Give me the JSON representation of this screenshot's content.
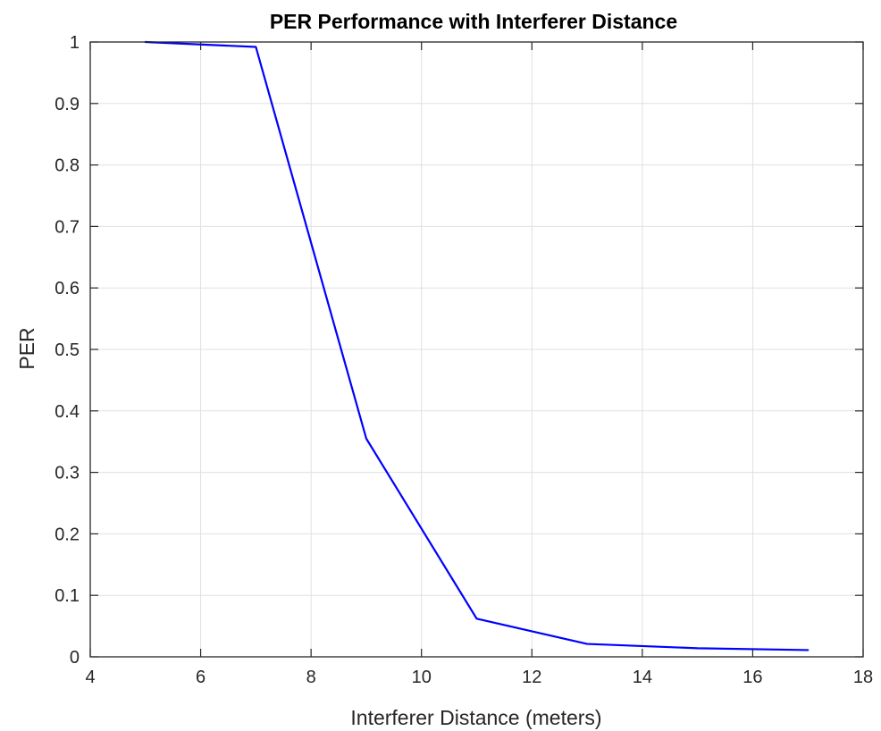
{
  "chart_data": {
    "type": "line",
    "title": "PER Performance with Interferer Distance",
    "xlabel": "Interferer Distance (meters)",
    "ylabel": "PER",
    "xlim": [
      4,
      18
    ],
    "ylim": [
      0,
      1
    ],
    "xticks": [
      4,
      6,
      8,
      10,
      12,
      14,
      16,
      18
    ],
    "yticks": [
      0,
      0.1,
      0.2,
      0.3,
      0.4,
      0.5,
      0.6,
      0.7,
      0.8,
      0.9,
      1
    ],
    "xtick_labels": [
      "4",
      "6",
      "8",
      "10",
      "12",
      "14",
      "16",
      "18"
    ],
    "ytick_labels": [
      "0",
      "0.1",
      "0.2",
      "0.3",
      "0.4",
      "0.5",
      "0.6",
      "0.7",
      "0.8",
      "0.9",
      "1"
    ],
    "grid": true,
    "legend": "none",
    "series": [
      {
        "x": [
          5,
          7,
          9,
          11,
          13,
          15,
          17
        ],
        "y": [
          1.0,
          0.992,
          0.355,
          0.062,
          0.021,
          0.014,
          0.011
        ],
        "color": "#0000ff"
      }
    ]
  },
  "colors": {
    "line": "#0000ff",
    "grid": "#e0e0e0",
    "axes": "#262626",
    "background": "#ffffff"
  }
}
